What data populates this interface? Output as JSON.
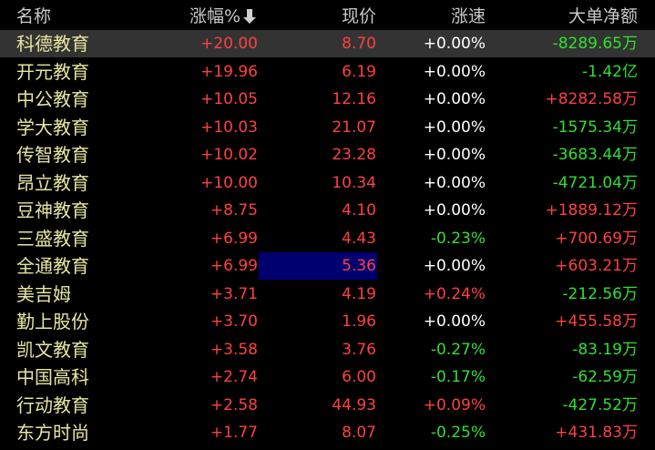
{
  "table": {
    "header": [
      "名称",
      "涨幅%",
      "现价",
      "涨速",
      "大单净额"
    ],
    "rows": [
      [
        "科德教育",
        "+20.00",
        "8.70",
        "+0.00%",
        "-8289.65万"
      ],
      [
        "开元教育",
        "+19.96",
        "6.19",
        "+0.00%",
        "-1.42亿"
      ],
      [
        "中公教育",
        "+10.05",
        "12.16",
        "+0.00%",
        "+8282.58万"
      ],
      [
        "学大教育",
        "+10.03",
        "21.07",
        "+0.00%",
        "-1575.34万"
      ],
      [
        "传智教育",
        "+10.02",
        "23.28",
        "+0.00%",
        "-3683.44万"
      ],
      [
        "昂立教育",
        "+10.00",
        "10.34",
        "+0.00%",
        "-4721.04万"
      ],
      [
        "豆神教育",
        "+8.75",
        "4.10",
        "+0.00%",
        "+1889.12万"
      ],
      [
        "三盛教育",
        "+6.99",
        "4.43",
        "-0.23%",
        "+700.69万"
      ],
      [
        "全通教育",
        "+6.99",
        "5.36",
        "+0.00%",
        "+603.21万"
      ],
      [
        "美吉姆",
        "+3.71",
        "4.19",
        "+0.24%",
        "-212.56万"
      ],
      [
        "勤上股份",
        "+3.70",
        "1.96",
        "+0.00%",
        "+455.58万"
      ],
      [
        "凯文教育",
        "+3.58",
        "3.76",
        "-0.27%",
        "-83.19万"
      ],
      [
        "中国高科",
        "+2.74",
        "6.00",
        "-0.17%",
        "-62.59万"
      ],
      [
        "行动教育",
        "+2.58",
        "44.93",
        "+0.09%",
        "-427.52万"
      ],
      [
        "东方时尚",
        "+1.77",
        "8.07",
        "-0.25%",
        "+431.83万"
      ]
    ]
  }
}
